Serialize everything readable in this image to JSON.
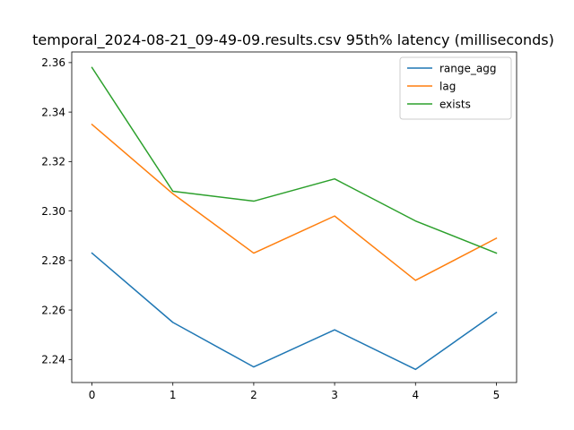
{
  "chart_data": {
    "type": "line",
    "title": "temporal_2024-08-21_09-49-09.results.csv 95th% latency (milliseconds)",
    "xlabel": "",
    "ylabel": "",
    "x": [
      0,
      1,
      2,
      3,
      4,
      5
    ],
    "xticks": [
      "0",
      "1",
      "2",
      "3",
      "4",
      "5"
    ],
    "yticks": [
      "2.24",
      "2.26",
      "2.28",
      "2.30",
      "2.32",
      "2.34",
      "2.36"
    ],
    "xlim": [
      -0.25,
      5.25
    ],
    "ylim": [
      2.2307,
      2.3643
    ],
    "grid": false,
    "legend_position": "top-right",
    "series": [
      {
        "name": "range_agg",
        "color": "#1f77b4",
        "values": [
          2.283,
          2.255,
          2.237,
          2.252,
          2.236,
          2.259
        ]
      },
      {
        "name": "lag",
        "color": "#ff7f0e",
        "values": [
          2.335,
          2.307,
          2.283,
          2.298,
          2.272,
          2.289
        ]
      },
      {
        "name": "exists",
        "color": "#2ca02c",
        "values": [
          2.358,
          2.308,
          2.304,
          2.313,
          2.296,
          2.283
        ]
      }
    ]
  }
}
